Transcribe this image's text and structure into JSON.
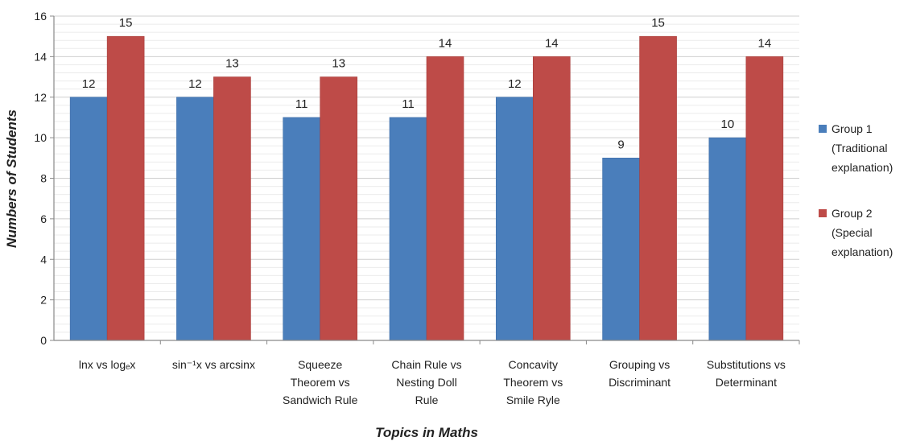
{
  "chart_data": {
    "type": "bar",
    "xlabel": "Topics in Maths",
    "ylabel": "Numbers of Students",
    "ylim": [
      0,
      16
    ],
    "yticks": [
      0,
      2,
      4,
      6,
      8,
      10,
      12,
      14,
      16
    ],
    "grid": true,
    "legend_position": "right",
    "categories": [
      [
        "lnx vs logₑx"
      ],
      [
        "sin⁻¹x vs arcsinx"
      ],
      [
        "Squeeze",
        "Theorem vs",
        "Sandwich Rule"
      ],
      [
        "Chain Rule vs",
        "Nesting Doll",
        "Rule"
      ],
      [
        "Concavity",
        "Theorem vs",
        "Smile Ryle"
      ],
      [
        "Grouping vs",
        "Discriminant"
      ],
      [
        "Substitutions vs",
        "Determinant"
      ]
    ],
    "series": [
      {
        "name": [
          "Group 1",
          "(Traditional",
          "explanation)"
        ],
        "color": "#4a7ebb",
        "values": [
          12,
          12,
          11,
          11,
          12,
          9,
          10
        ]
      },
      {
        "name": [
          "Group 2",
          "(Special",
          "explanation)"
        ],
        "color": "#be4b48",
        "values": [
          15,
          13,
          13,
          14,
          14,
          15,
          14
        ]
      }
    ]
  }
}
